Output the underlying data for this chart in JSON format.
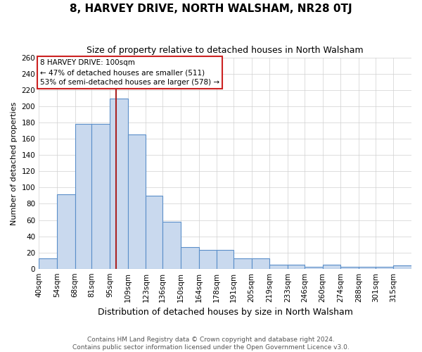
{
  "title": "8, HARVEY DRIVE, NORTH WALSHAM, NR28 0TJ",
  "subtitle": "Size of property relative to detached houses in North Walsham",
  "xlabel": "Distribution of detached houses by size in North Walsham",
  "ylabel": "Number of detached properties",
  "footnote1": "Contains HM Land Registry data © Crown copyright and database right 2024.",
  "footnote2": "Contains public sector information licensed under the Open Government Licence v3.0.",
  "bin_labels": [
    "40sqm",
    "54sqm",
    "68sqm",
    "81sqm",
    "95sqm",
    "109sqm",
    "123sqm",
    "136sqm",
    "150sqm",
    "164sqm",
    "178sqm",
    "191sqm",
    "205sqm",
    "219sqm",
    "233sqm",
    "246sqm",
    "260sqm",
    "274sqm",
    "288sqm",
    "301sqm",
    "315sqm"
  ],
  "bin_edges": [
    40,
    54,
    68,
    81,
    95,
    109,
    123,
    136,
    150,
    164,
    178,
    191,
    205,
    219,
    233,
    246,
    260,
    274,
    288,
    301,
    315,
    329
  ],
  "counts": [
    13,
    92,
    178,
    178,
    210,
    165,
    90,
    58,
    27,
    23,
    23,
    13,
    13,
    5,
    5,
    2,
    5,
    2,
    2,
    2,
    4
  ],
  "bar_facecolor": "#c9d9ee",
  "bar_edgecolor": "#5b8fc9",
  "grid_color": "#d0d0d0",
  "background_color": "#ffffff",
  "vline_x": 100,
  "vline_color": "#aa2222",
  "annotation_title": "8 HARVEY DRIVE: 100sqm",
  "annotation_line1": "← 47% of detached houses are smaller (511)",
  "annotation_line2": "53% of semi-detached houses are larger (578) →",
  "annotation_box_edgecolor": "#cc2222",
  "ylim": [
    0,
    260
  ],
  "yticks": [
    0,
    20,
    40,
    60,
    80,
    100,
    120,
    140,
    160,
    180,
    200,
    220,
    240,
    260
  ],
  "title_fontsize": 11,
  "subtitle_fontsize": 9,
  "xlabel_fontsize": 9,
  "ylabel_fontsize": 8,
  "tick_fontsize": 7.5,
  "footnote_fontsize": 6.5
}
